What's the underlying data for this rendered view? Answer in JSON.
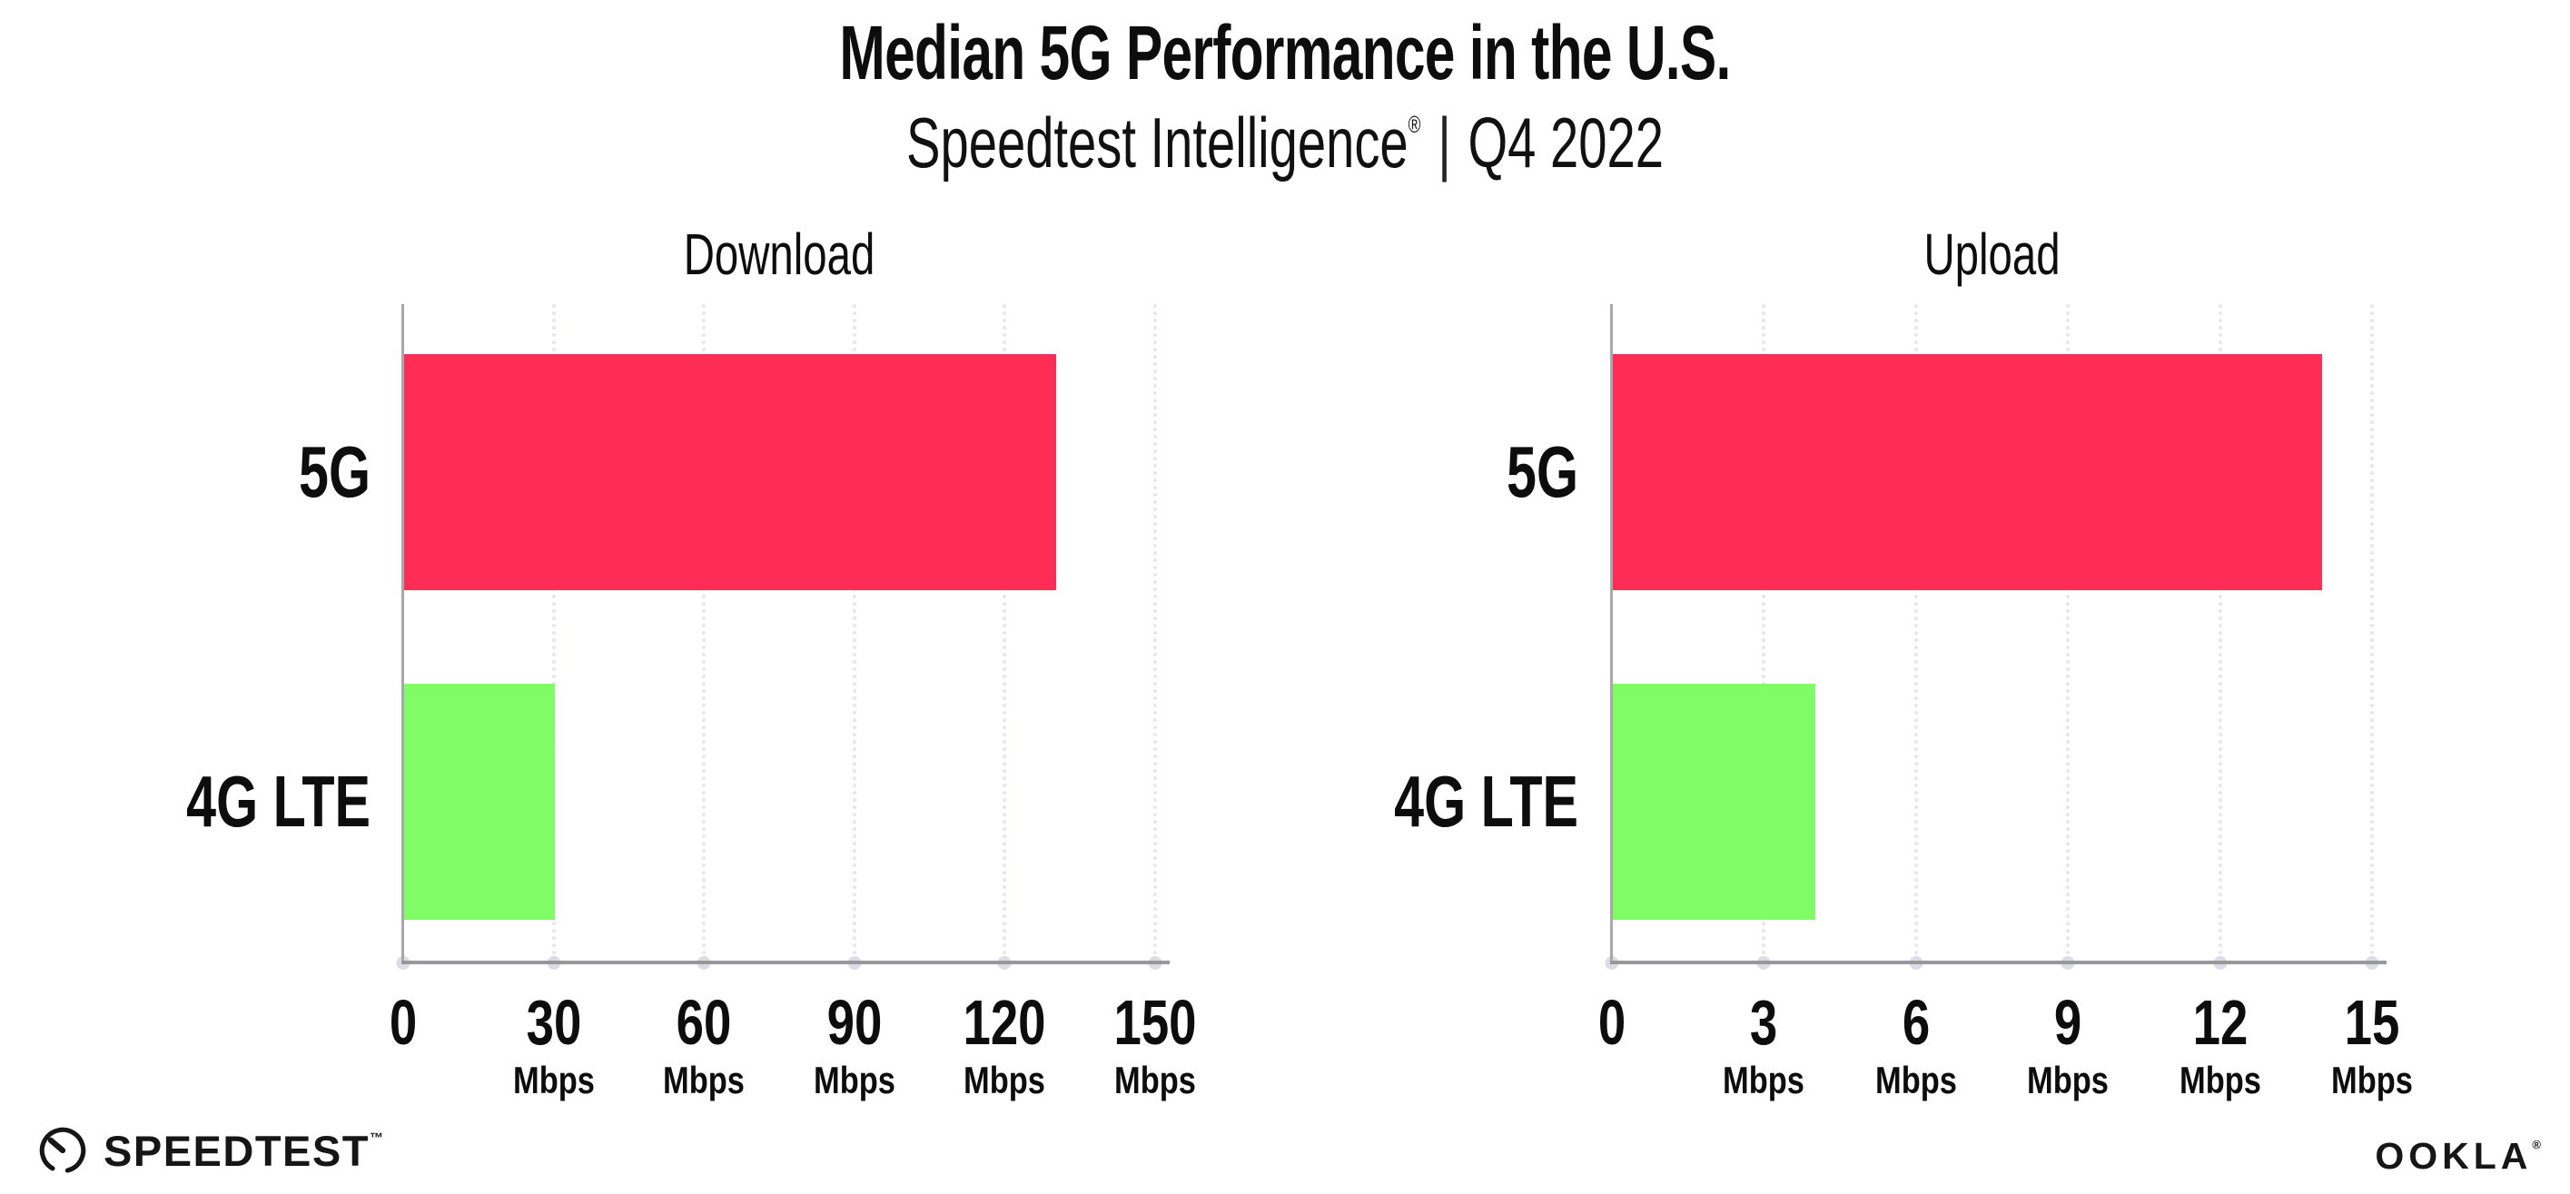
{
  "header": {
    "title": "Median 5G Performance in the U.S.",
    "subtitle_brand": "Speedtest Intelligence",
    "subtitle_mark": "®",
    "subtitle_separator": "|",
    "subtitle_period": "Q4 2022"
  },
  "footer": {
    "speedtest_label": "SPEEDTEST",
    "speedtest_mark": "™",
    "ookla_label": "OOKLA",
    "ookla_mark": "®"
  },
  "colors": {
    "bar_5g": "#ff2d56",
    "bar_4g_lte": "#80fc66",
    "gridline": "#e6e6f0",
    "axis": "#98989c",
    "tick_dot": "#dcdce6",
    "text": "#0d0d0d"
  },
  "chart_data": [
    {
      "type": "bar",
      "orientation": "horizontal",
      "title": "Download",
      "categories": [
        "5G",
        "4G LTE"
      ],
      "values": [
        130,
        30
      ],
      "unit": "Mbps",
      "xlabel": "",
      "ylabel": "",
      "xlim": [
        0,
        150
      ],
      "xticks": [
        0,
        30,
        60,
        90,
        120,
        150
      ],
      "bar_colors": [
        "#ff2d56",
        "#80fc66"
      ],
      "grid": "vertical-dotted",
      "legend": "none"
    },
    {
      "type": "bar",
      "orientation": "horizontal",
      "title": "Upload",
      "categories": [
        "5G",
        "4G LTE"
      ],
      "values": [
        14,
        4
      ],
      "unit": "Mbps",
      "xlabel": "",
      "ylabel": "",
      "xlim": [
        0,
        15
      ],
      "xticks": [
        0,
        3,
        6,
        9,
        12,
        15
      ],
      "bar_colors": [
        "#ff2d56",
        "#80fc66"
      ],
      "grid": "vertical-dotted",
      "legend": "none"
    }
  ]
}
